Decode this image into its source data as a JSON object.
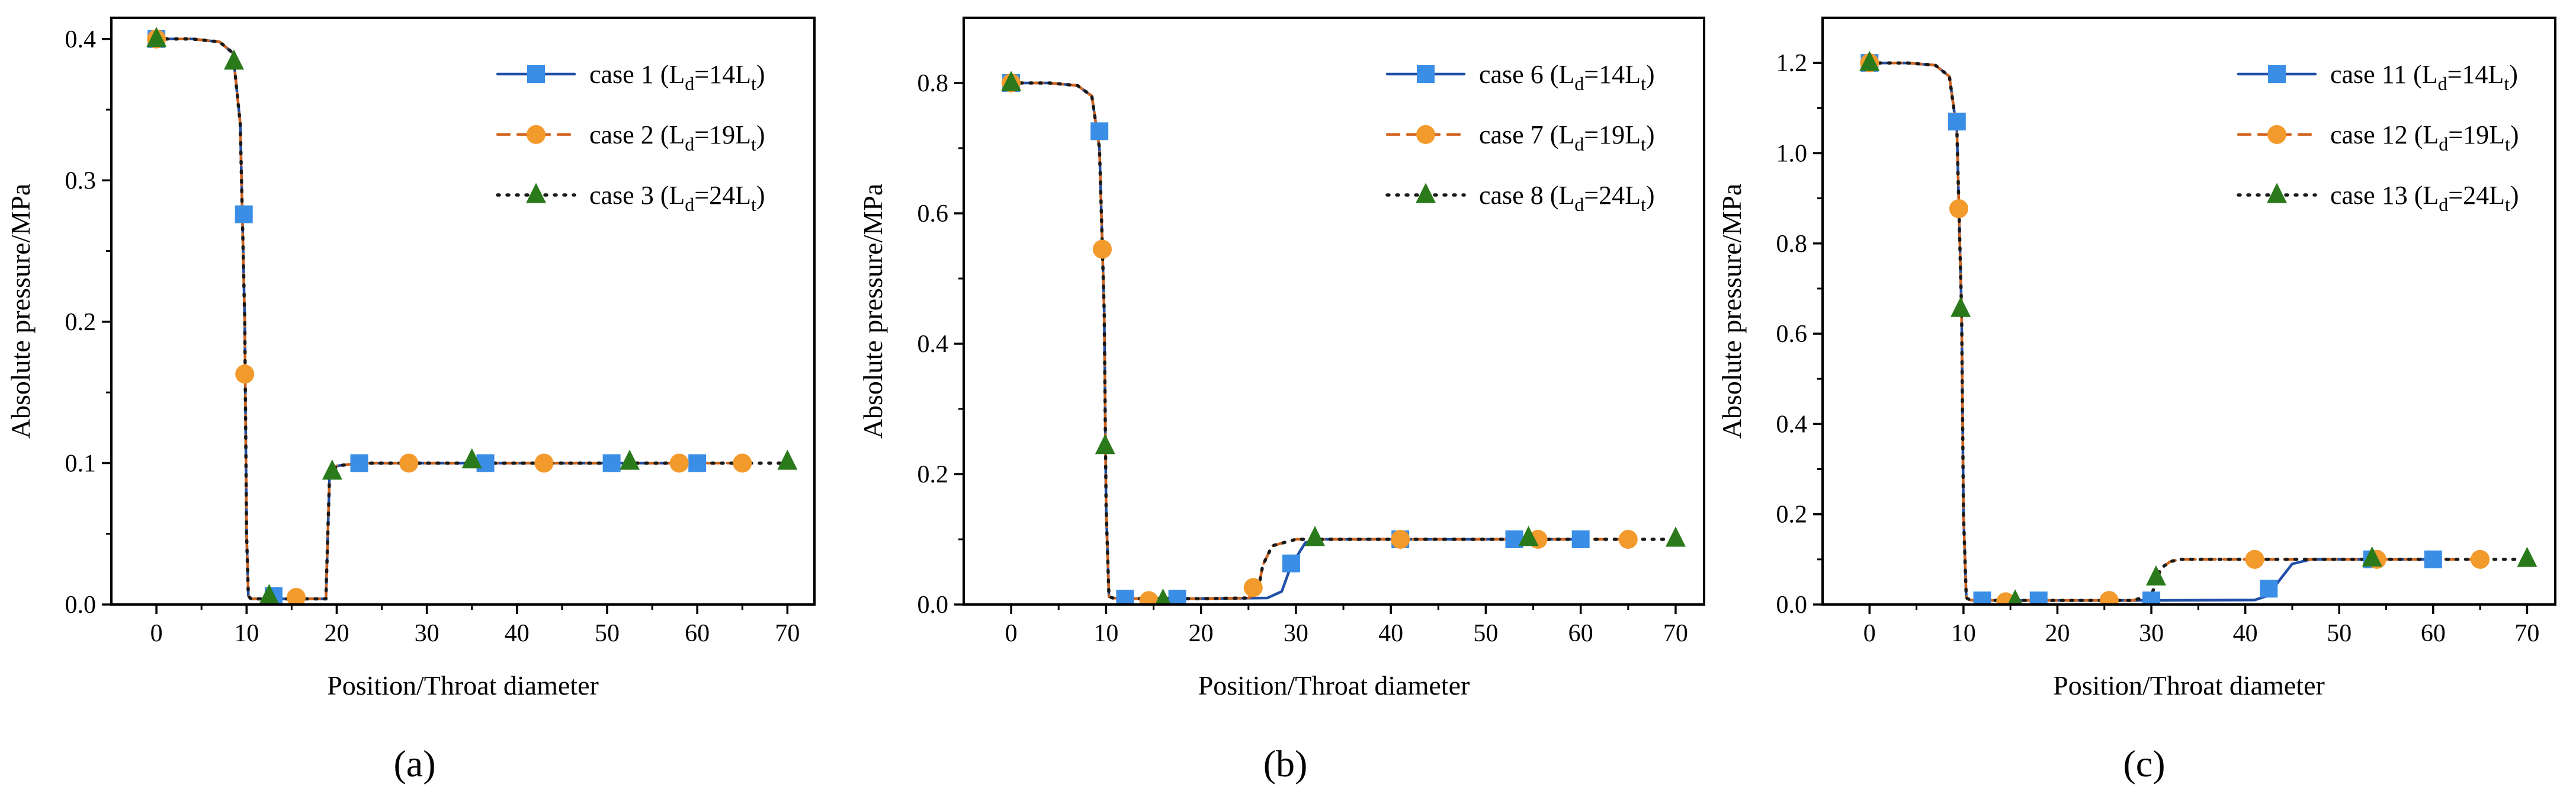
{
  "colors": {
    "series1": "#1f4fa8",
    "series1_marker": "#3a8ee6",
    "series2": "#d2651f",
    "series2_marker": "#f39a2c",
    "series3": "#1a1a1a",
    "series3_marker": "#2a7a1c",
    "axis": "#000000"
  },
  "chart_data": [
    {
      "type": "line",
      "panel_label": "(a)",
      "xlabel": "Position/Throat diameter",
      "ylabel": "Absolute pressure/MPa",
      "xlim": [
        -5,
        73
      ],
      "ylim": [
        0,
        0.415
      ],
      "xticks": [
        0,
        10,
        20,
        30,
        40,
        50,
        60,
        70
      ],
      "yticks": [
        0.0,
        0.1,
        0.2,
        0.3,
        0.4
      ],
      "ytick_labels": [
        "0.0",
        "0.1",
        "0.2",
        "0.3",
        "0.4"
      ],
      "legend_position": "top-right",
      "series": [
        {
          "name": "case 1",
          "legend": {
            "prefix": "case 1 (L",
            "sub1": "d",
            "mid": "=14L",
            "sub2": "t",
            "suffix": ")"
          },
          "style": "solid",
          "marker": "square",
          "x": [
            0,
            4,
            7,
            8.5,
            9.3,
            9.8,
            10,
            10.2,
            10.5,
            11,
            15,
            18.8,
            19.2,
            20,
            22.5,
            36.5,
            50.5,
            60
          ],
          "y": [
            0.4,
            0.4,
            0.398,
            0.39,
            0.34,
            0.2,
            0.05,
            0.006,
            0.004,
            0.004,
            0.004,
            0.004,
            0.09,
            0.098,
            0.1,
            0.1,
            0.1,
            0.1
          ],
          "markers_x": [
            0,
            9.7,
            13,
            22.5,
            36.5,
            50.5,
            60
          ],
          "markers_y": [
            0.4,
            0.276,
            0.006,
            0.1,
            0.1,
            0.1,
            0.1
          ]
        },
        {
          "name": "case 2",
          "legend": {
            "prefix": "case 2 (L",
            "sub1": "d",
            "mid": "=19L",
            "sub2": "t",
            "suffix": ")"
          },
          "style": "dashed",
          "marker": "circle",
          "x": [
            0,
            4,
            7,
            8.5,
            9.3,
            9.8,
            10,
            10.2,
            10.5,
            11,
            15,
            18.8,
            19.2,
            20,
            22.5,
            28,
            43,
            58,
            65
          ],
          "y": [
            0.4,
            0.4,
            0.398,
            0.39,
            0.34,
            0.2,
            0.05,
            0.006,
            0.004,
            0.004,
            0.004,
            0.004,
            0.09,
            0.098,
            0.1,
            0.1,
            0.1,
            0.1,
            0.1
          ],
          "markers_x": [
            0,
            9.8,
            15.5,
            28,
            43,
            58,
            65
          ],
          "markers_y": [
            0.4,
            0.163,
            0.005,
            0.1,
            0.1,
            0.1,
            0.1
          ]
        },
        {
          "name": "case 3",
          "legend": {
            "prefix": "case 3 (L",
            "sub1": "d",
            "mid": "=24L",
            "sub2": "t",
            "suffix": ")"
          },
          "style": "dotted",
          "marker": "triangle",
          "x": [
            0,
            4,
            7,
            8.5,
            9.3,
            9.8,
            10,
            10.2,
            10.5,
            11,
            15,
            18.8,
            19.2,
            20,
            22.5,
            35,
            52.5,
            70
          ],
          "y": [
            0.4,
            0.4,
            0.398,
            0.39,
            0.34,
            0.2,
            0.05,
            0.006,
            0.004,
            0.004,
            0.004,
            0.004,
            0.09,
            0.098,
            0.1,
            0.1,
            0.1,
            0.1
          ],
          "markers_x": [
            0,
            8.6,
            12.5,
            19.5,
            35,
            52.5,
            70
          ],
          "markers_y": [
            0.4,
            0.384,
            0.006,
            0.094,
            0.102,
            0.101,
            0.101
          ]
        }
      ]
    },
    {
      "type": "line",
      "panel_label": "(b)",
      "xlabel": "Position/Throat diameter",
      "ylabel": "Absolute pressure/MPa",
      "xlim": [
        -5,
        73
      ],
      "ylim": [
        0,
        0.9
      ],
      "xticks": [
        0,
        10,
        20,
        30,
        40,
        50,
        60,
        70
      ],
      "yticks": [
        0.0,
        0.2,
        0.4,
        0.6,
        0.8
      ],
      "ytick_labels": [
        "0.0",
        "0.2",
        "0.4",
        "0.6",
        "0.8"
      ],
      "legend_position": "top-right",
      "series": [
        {
          "name": "case 6",
          "legend": {
            "prefix": "case 6 (L",
            "sub1": "d",
            "mid": "=14L",
            "sub2": "t",
            "suffix": ")"
          },
          "style": "solid",
          "marker": "square",
          "x": [
            0,
            4,
            7,
            8.5,
            9.3,
            9.8,
            10,
            10.3,
            10.7,
            12,
            20,
            27,
            28.5,
            29.5,
            31,
            33,
            41,
            53,
            60
          ],
          "y": [
            0.8,
            0.8,
            0.796,
            0.78,
            0.7,
            0.45,
            0.15,
            0.012,
            0.01,
            0.009,
            0.009,
            0.01,
            0.02,
            0.06,
            0.095,
            0.1,
            0.1,
            0.1,
            0.1
          ],
          "markers_x": [
            0,
            9.3,
            12,
            17.5,
            29.5,
            41,
            53,
            60
          ],
          "markers_y": [
            0.8,
            0.726,
            0.009,
            0.009,
            0.063,
            0.1,
            0.1,
            0.1
          ]
        },
        {
          "name": "case 7",
          "legend": {
            "prefix": "case 7 (L",
            "sub1": "d",
            "mid": "=19L",
            "sub2": "t",
            "suffix": ")"
          },
          "style": "dashed",
          "marker": "circle",
          "x": [
            0,
            4,
            7,
            8.5,
            9.3,
            9.8,
            10,
            10.3,
            10.7,
            12,
            20,
            25,
            26,
            26.5,
            27.5,
            30,
            41,
            55,
            65
          ],
          "y": [
            0.8,
            0.8,
            0.796,
            0.78,
            0.7,
            0.45,
            0.15,
            0.012,
            0.01,
            0.009,
            0.009,
            0.01,
            0.02,
            0.06,
            0.09,
            0.1,
            0.1,
            0.1,
            0.1
          ],
          "markers_x": [
            0,
            9.6,
            14.5,
            25.5,
            41,
            55.5,
            65
          ],
          "markers_y": [
            0.8,
            0.545,
            0.006,
            0.026,
            0.1,
            0.1,
            0.1
          ]
        },
        {
          "name": "case 8",
          "legend": {
            "prefix": "case 8 (L",
            "sub1": "d",
            "mid": "=24L",
            "sub2": "t",
            "suffix": ")"
          },
          "style": "dotted",
          "marker": "triangle",
          "x": [
            0,
            4,
            7,
            8.5,
            9.3,
            9.8,
            10,
            10.3,
            10.7,
            12,
            20,
            25,
            26,
            26.5,
            27.5,
            30,
            32,
            54.5,
            70
          ],
          "y": [
            0.8,
            0.8,
            0.796,
            0.78,
            0.7,
            0.45,
            0.15,
            0.012,
            0.01,
            0.009,
            0.009,
            0.01,
            0.02,
            0.06,
            0.09,
            0.1,
            0.1,
            0.1,
            0.1
          ],
          "markers_x": [
            0,
            9.9,
            16,
            32,
            54.5,
            70
          ],
          "markers_y": [
            0.8,
            0.243,
            0.006,
            0.102,
            0.102,
            0.101
          ]
        }
      ]
    },
    {
      "type": "line",
      "panel_label": "(c)",
      "xlabel": "Position/Throat diameter",
      "ylabel": "Absolute pressure/MPa",
      "xlim": [
        -5,
        73
      ],
      "ylim": [
        0,
        1.3
      ],
      "xticks": [
        0,
        10,
        20,
        30,
        40,
        50,
        60,
        70
      ],
      "yticks": [
        0.0,
        0.2,
        0.4,
        0.6,
        0.8,
        1.0,
        1.2
      ],
      "ytick_labels": [
        "0.0",
        "0.2",
        "0.4",
        "0.6",
        "0.8",
        "1.0",
        "1.2"
      ],
      "legend_position": "top-right",
      "series": [
        {
          "name": "case 11",
          "legend": {
            "prefix": "case 11 (L",
            "sub1": "d",
            "mid": "=14L",
            "sub2": "t",
            "suffix": ")"
          },
          "style": "solid",
          "marker": "square",
          "x": [
            0,
            4,
            7,
            8.5,
            9.3,
            9.8,
            10,
            10.3,
            10.7,
            12,
            30,
            41,
            42.5,
            43.5,
            45,
            47,
            53,
            60
          ],
          "y": [
            1.2,
            1.2,
            1.195,
            1.17,
            1.05,
            0.65,
            0.2,
            0.015,
            0.01,
            0.009,
            0.009,
            0.01,
            0.02,
            0.05,
            0.09,
            0.1,
            0.1,
            0.1
          ],
          "markers_x": [
            0,
            9.3,
            12,
            18,
            30,
            42.5,
            53.5,
            60
          ],
          "markers_y": [
            1.2,
            1.07,
            0.009,
            0.009,
            0.009,
            0.035,
            0.1,
            0.1
          ]
        },
        {
          "name": "case 12",
          "legend": {
            "prefix": "case 12 (L",
            "sub1": "d",
            "mid": "=19L",
            "sub2": "t",
            "suffix": ")"
          },
          "style": "dashed",
          "marker": "circle",
          "x": [
            0,
            4,
            7,
            8.5,
            9.3,
            9.8,
            10,
            10.3,
            10.7,
            12,
            28,
            30,
            30.5,
            31,
            32,
            33,
            41,
            54,
            65
          ],
          "y": [
            1.2,
            1.2,
            1.195,
            1.17,
            1.05,
            0.65,
            0.2,
            0.015,
            0.01,
            0.009,
            0.009,
            0.02,
            0.05,
            0.08,
            0.095,
            0.1,
            0.1,
            0.1,
            0.1
          ],
          "markers_x": [
            0,
            9.5,
            14.5,
            25.5,
            41,
            54,
            65
          ],
          "markers_y": [
            1.2,
            0.877,
            0.006,
            0.009,
            0.1,
            0.1,
            0.1
          ]
        },
        {
          "name": "case 13",
          "legend": {
            "prefix": "case 13 (L",
            "sub1": "d",
            "mid": "=24L",
            "sub2": "t",
            "suffix": ")"
          },
          "style": "dotted",
          "marker": "triangle",
          "x": [
            0,
            4,
            7,
            8.5,
            9.3,
            9.8,
            10,
            10.3,
            10.7,
            12,
            28,
            30,
            30.5,
            31,
            32,
            33,
            53.5,
            70
          ],
          "y": [
            1.2,
            1.2,
            1.195,
            1.17,
            1.05,
            0.65,
            0.2,
            0.015,
            0.01,
            0.009,
            0.009,
            0.02,
            0.05,
            0.08,
            0.095,
            0.1,
            0.1,
            0.1
          ],
          "markers_x": [
            0,
            9.7,
            15.5,
            30.5,
            53.5,
            70
          ],
          "markers_y": [
            1.2,
            0.655,
            0.007,
            0.06,
            0.102,
            0.101
          ]
        }
      ]
    }
  ]
}
